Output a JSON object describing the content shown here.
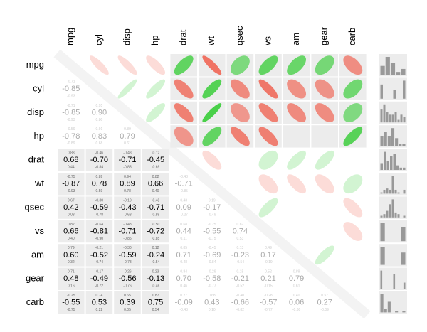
{
  "chart_data": {
    "type": "corrgram",
    "variables": [
      "mpg",
      "cyl",
      "disp",
      "hp",
      "drat",
      "wt",
      "qsec",
      "vs",
      "am",
      "gear",
      "carb"
    ],
    "r": [
      [],
      [
        -0.85
      ],
      [
        -0.85,
        0.9
      ],
      [
        -0.78,
        0.83,
        0.79
      ],
      [
        0.68,
        -0.7,
        -0.71,
        -0.45
      ],
      [
        -0.87,
        0.78,
        0.89,
        0.66,
        -0.71
      ],
      [
        0.42,
        -0.59,
        -0.43,
        -0.71,
        0.09,
        -0.17
      ],
      [
        0.66,
        -0.81,
        -0.71,
        -0.72,
        0.44,
        -0.55,
        0.74
      ],
      [
        0.6,
        -0.52,
        -0.59,
        -0.24,
        0.71,
        -0.69,
        -0.23,
        0.17
      ],
      [
        0.48,
        -0.49,
        -0.56,
        -0.13,
        0.7,
        -0.58,
        -0.21,
        0.21,
        0.79
      ],
      [
        -0.55,
        0.53,
        0.39,
        0.75,
        -0.09,
        0.43,
        -0.66,
        -0.57,
        0.06,
        0.27
      ]
    ],
    "r_labels": [
      [],
      [
        "-0.85"
      ],
      [
        "-0.85",
        "0.90"
      ],
      [
        "-0.78",
        "0.83",
        "0.79"
      ],
      [
        "0.68",
        "-0.70",
        "-0.71",
        "-0.45"
      ],
      [
        "-0.87",
        "0.78",
        "0.89",
        "0.66",
        "-0.71"
      ],
      [
        "0.42",
        "-0.59",
        "-0.43",
        "-0.71",
        "0.09",
        "-0.17"
      ],
      [
        "0.66",
        "-0.81",
        "-0.71",
        "-0.72",
        "0.44",
        "-0.55",
        "0.74"
      ],
      [
        "0.60",
        "-0.52",
        "-0.59",
        "-0.24",
        "0.71",
        "-0.69",
        "-0.23",
        "0.17"
      ],
      [
        "0.48",
        "-0.49",
        "-0.56",
        "-0.13",
        "0.70",
        "-0.58",
        "-0.21",
        "0.21",
        "0.79"
      ],
      [
        "-0.55",
        "0.53",
        "0.39",
        "0.75",
        "-0.09",
        "0.43",
        "-0.66",
        "-0.57",
        "0.06",
        "0.27"
      ]
    ],
    "lower_labels": [
      [],
      [
        "-0.93"
      ],
      [
        "-0.93",
        "0.80"
      ],
      [
        "-0.89",
        "0.68",
        "0.61"
      ],
      [
        "0.44",
        "-0.84",
        "-0.85",
        "-0.69"
      ],
      [
        "-0.93",
        "0.59",
        "0.78",
        "0.40",
        "-0.85"
      ],
      [
        "0.08",
        "-0.78",
        "-0.68",
        "-0.85",
        "-0.27",
        "-0.49"
      ],
      [
        "0.40",
        "-0.90",
        "-0.85",
        "-0.85",
        "0.11",
        "-0.75",
        "0.53"
      ],
      [
        "0.32",
        "-0.74",
        "-0.78",
        "-0.54",
        "0.48",
        "-0.84",
        "-0.54",
        "-0.19"
      ],
      [
        "0.16",
        "-0.72",
        "-0.76",
        "-0.46",
        "0.46",
        "-0.77",
        "-0.52",
        "-0.15",
        "0.61"
      ],
      [
        "-0.75",
        "0.22",
        "0.05",
        "0.54",
        "-0.43",
        "0.10",
        "-0.82",
        "-0.77",
        "-0.30",
        "-0.09"
      ]
    ],
    "upper_labels": [
      [],
      [
        "-0.71"
      ],
      [
        "-0.71",
        "0.95"
      ],
      [
        "-0.59",
        "0.91",
        "0.89"
      ],
      [
        "0.83",
        "-0.46",
        "-0.48",
        "-0.12"
      ],
      [
        "-0.75",
        "0.89",
        "0.94",
        "0.82",
        "-0.48"
      ],
      [
        "0.67",
        "-0.30",
        "-0.10",
        "-0.48",
        "0.43",
        "0.19"
      ],
      [
        "0.82",
        "-0.64",
        "-0.48",
        "-0.50",
        "0.68",
        "-0.25",
        "0.87"
      ],
      [
        "0.79",
        "-0.21",
        "-0.30",
        "0.12",
        "0.85",
        "-0.45",
        "0.13",
        "0.49"
      ],
      [
        "0.71",
        "-0.17",
        "-0.26",
        "0.23",
        "0.84",
        "-0.29",
        "0.15",
        "0.52",
        "0.89"
      ],
      [
        "-0.25",
        "0.74",
        "0.65",
        "0.87",
        "0.27",
        "0.68",
        "-0.40",
        "-0.28",
        "0.40",
        "0.57"
      ]
    ],
    "block_split": 4,
    "positive_color": "#33cc33",
    "negative_color": "#f0604f",
    "histograms": [
      [
        6,
        12,
        8,
        2,
        4
      ],
      [
        11,
        0,
        0,
        0,
        7,
        0,
        0,
        14
      ],
      [
        5,
        7,
        4,
        3,
        3,
        4,
        1,
        3,
        2
      ],
      [
        5,
        7,
        5,
        9,
        4,
        1,
        1
      ],
      [
        3,
        8,
        4,
        6,
        7,
        2,
        1,
        1
      ],
      [
        1,
        3,
        4,
        3,
        14,
        3,
        1,
        0,
        3
      ],
      [
        1,
        2,
        4,
        8,
        11,
        3,
        2,
        0,
        1
      ],
      [
        18,
        0,
        0,
        0,
        14
      ],
      [
        19,
        0,
        0,
        0,
        13
      ],
      [
        15,
        0,
        0,
        0,
        0,
        12,
        0,
        0,
        0,
        5
      ],
      [
        17,
        3,
        10,
        0,
        1,
        0,
        1
      ]
    ],
    "histogram_color": "#999999"
  }
}
